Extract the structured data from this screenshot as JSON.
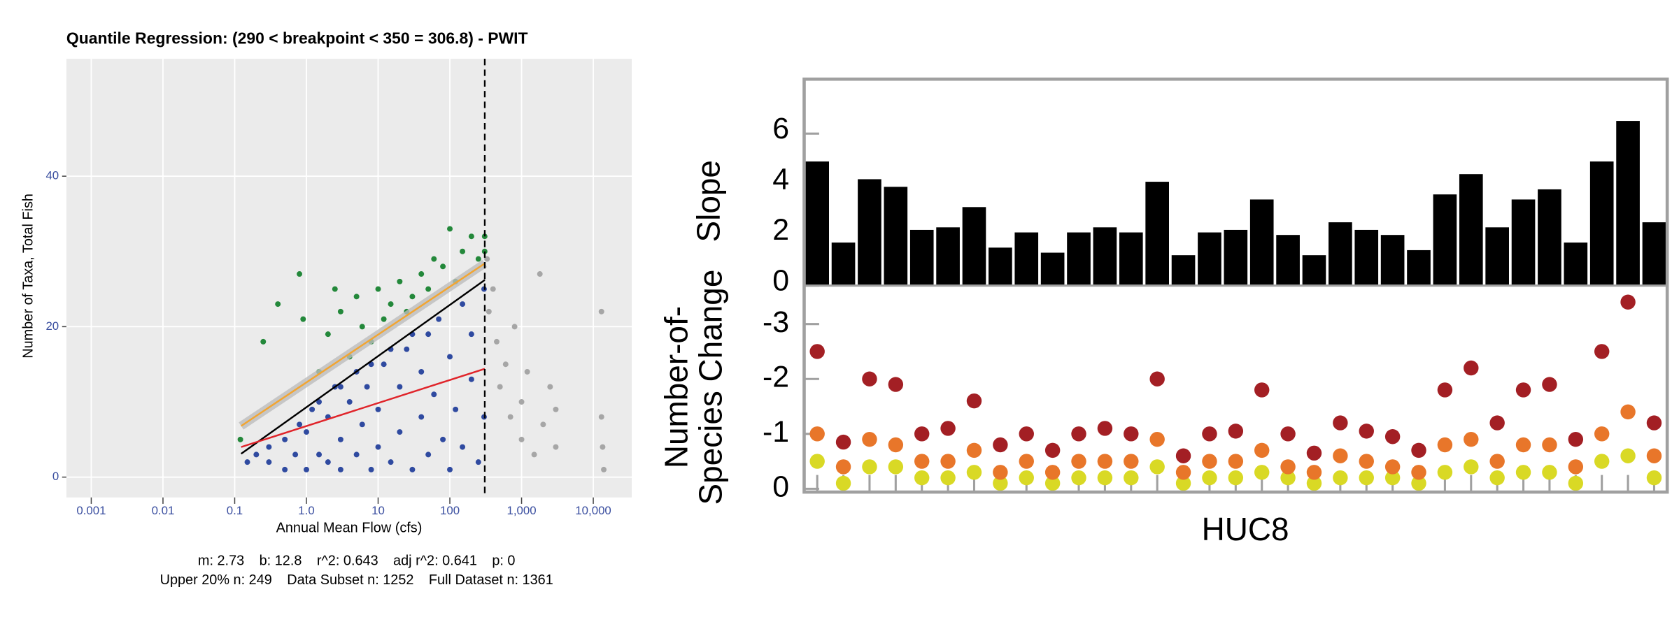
{
  "chart_data": [
    {
      "type": "scatter",
      "title": "Quantile Regression: (290 < breakpoint < 350 = 306.8) - PWIT",
      "xlabel": "Annual Mean Flow (cfs)",
      "ylabel": "Number of Taxa, Total Fish",
      "xscale": "log",
      "xlim": [
        0.00045,
        34400
      ],
      "ylim": [
        -2.7,
        55.6
      ],
      "xticks": [
        0.001,
        0.01,
        0.1,
        {
          "value": 1,
          "label": "1.0"
        },
        10,
        100,
        {
          "value": 1000,
          "label": "1,000"
        },
        {
          "value": 10000,
          "label": "10,000"
        }
      ],
      "yticks": [
        0,
        20,
        40
      ],
      "grid": true,
      "series": [
        {
          "color": "#2f4aa0",
          "x": [
            0.15,
            0.2,
            0.3,
            0.3,
            0.5,
            0.5,
            0.7,
            0.8,
            1,
            1,
            1.2,
            1.5,
            1.5,
            2,
            2,
            2.5,
            3,
            3,
            3,
            4,
            5,
            5,
            6,
            7,
            8,
            8,
            10,
            10,
            12,
            15,
            15,
            20,
            20,
            25,
            30,
            30,
            40,
            40,
            50,
            50,
            60,
            70,
            80,
            100,
            100,
            120,
            150,
            150,
            200,
            200,
            250,
            300,
            300
          ],
          "y": [
            2,
            3,
            2,
            4,
            1,
            5,
            3,
            7,
            1,
            6,
            9,
            3,
            10,
            2,
            8,
            12,
            1,
            5,
            12,
            10,
            3,
            14,
            7,
            12,
            1,
            15,
            4,
            9,
            15,
            2,
            17,
            6,
            12,
            17,
            1,
            19,
            8,
            14,
            3,
            19,
            11,
            21,
            5,
            1,
            16,
            9,
            23,
            4,
            13,
            19,
            2,
            25,
            8
          ]
        },
        {
          "color": "#23883a",
          "x": [
            0.12,
            0.25,
            0.4,
            0.8,
            0.9,
            1.5,
            2,
            2.5,
            3,
            4,
            5,
            6,
            8,
            10,
            12,
            15,
            20,
            25,
            30,
            40,
            50,
            60,
            80,
            100,
            120,
            150,
            200,
            250,
            306,
            306
          ],
          "y": [
            5,
            18,
            23,
            27,
            21,
            14,
            19,
            25,
            22,
            16,
            24,
            20,
            18,
            25,
            21,
            23,
            26,
            22,
            24,
            27,
            25,
            29,
            28,
            33,
            26,
            30,
            32,
            29,
            30,
            32
          ]
        },
        {
          "color": "#a6a6a6",
          "x": [
            330,
            350,
            400,
            450,
            500,
            600,
            700,
            800,
            1000,
            1000,
            1200,
            1500,
            1800,
            2000,
            2500,
            3000,
            3000,
            13000,
            13000,
            13500,
            14000
          ],
          "y": [
            29,
            22,
            25,
            18,
            12,
            15,
            8,
            20,
            10,
            5,
            14,
            3,
            27,
            7,
            12,
            4,
            9,
            22,
            8,
            4,
            1
          ]
        }
      ],
      "lines": [
        {
          "color": "#f2a531",
          "x": [
            0.123,
            306.8
          ],
          "y": [
            6.8,
            28.4
          ]
        },
        {
          "color": "#000000",
          "x": [
            0.123,
            306.8
          ],
          "y": [
            3.1,
            26.2
          ]
        },
        {
          "color": "#e0242a",
          "x": [
            0.123,
            306.8
          ],
          "y": [
            4.0,
            14.4
          ]
        }
      ],
      "breakpoint": 306.8,
      "footer": [
        [
          "m: 2.73",
          "b: 12.8",
          "r^2: 0.643",
          "adj r^2: 0.641",
          "p: 0"
        ],
        [
          "Upper 20% n: 249",
          "Data Subset n: 1252",
          "Full Dataset n: 1361"
        ]
      ]
    },
    {
      "type": "bar",
      "ylabel": "Slope",
      "color": "#000000",
      "ylim": [
        0,
        8.15
      ],
      "yticks": [
        0,
        2,
        4,
        6
      ],
      "values": [
        4.9,
        1.7,
        4.2,
        3.9,
        2.2,
        2.3,
        3.1,
        1.5,
        2.1,
        1.3,
        2.1,
        2.3,
        2.1,
        4.1,
        1.2,
        2.1,
        2.2,
        3.4,
        2.0,
        1.2,
        2.5,
        2.2,
        2.0,
        1.4,
        3.6,
        4.4,
        2.3,
        3.4,
        3.8,
        1.7,
        4.9,
        6.5,
        2.5
      ]
    },
    {
      "type": "dot",
      "ylabel": [
        "Number-of-",
        "Species Change"
      ],
      "xlabel": "HUC8",
      "ylim": [
        0.06,
        -3.7
      ],
      "yticks": [
        0,
        -1,
        -2,
        -3
      ],
      "series": [
        {
          "color": "#d9d925",
          "values": [
            -0.5,
            -0.1,
            -0.4,
            -0.4,
            -0.2,
            -0.2,
            -0.3,
            -0.1,
            -0.2,
            -0.1,
            -0.2,
            -0.2,
            -0.2,
            -0.4,
            -0.1,
            -0.2,
            -0.2,
            -0.3,
            -0.2,
            -0.1,
            -0.2,
            -0.2,
            -0.2,
            -0.1,
            -0.3,
            -0.4,
            -0.2,
            -0.3,
            -0.3,
            -0.1,
            -0.5,
            -0.6,
            -0.2
          ]
        },
        {
          "color": "#e8762a",
          "values": [
            -1.0,
            -0.4,
            -0.9,
            -0.8,
            -0.5,
            -0.5,
            -0.7,
            -0.3,
            -0.5,
            -0.3,
            -0.5,
            -0.5,
            -0.5,
            -0.9,
            -0.3,
            -0.5,
            -0.5,
            -0.7,
            -0.4,
            -0.3,
            -0.6,
            -0.5,
            -0.4,
            -0.3,
            -0.8,
            -0.9,
            -0.5,
            -0.8,
            -0.8,
            -0.4,
            -1.0,
            -1.4,
            -0.6
          ]
        },
        {
          "color": "#a31f24",
          "values": [
            -2.5,
            -0.85,
            -2.0,
            -1.9,
            -1.0,
            -1.1,
            -1.6,
            -0.8,
            -1.0,
            -0.7,
            -1.0,
            -1.1,
            -1.0,
            -2.0,
            -0.6,
            -1.0,
            -1.05,
            -1.8,
            -1.0,
            -0.65,
            -1.2,
            -1.05,
            -0.95,
            -0.7,
            -1.8,
            -2.2,
            -1.2,
            -1.8,
            -1.9,
            -0.9,
            -2.5,
            -3.4,
            -1.2
          ]
        }
      ]
    }
  ]
}
